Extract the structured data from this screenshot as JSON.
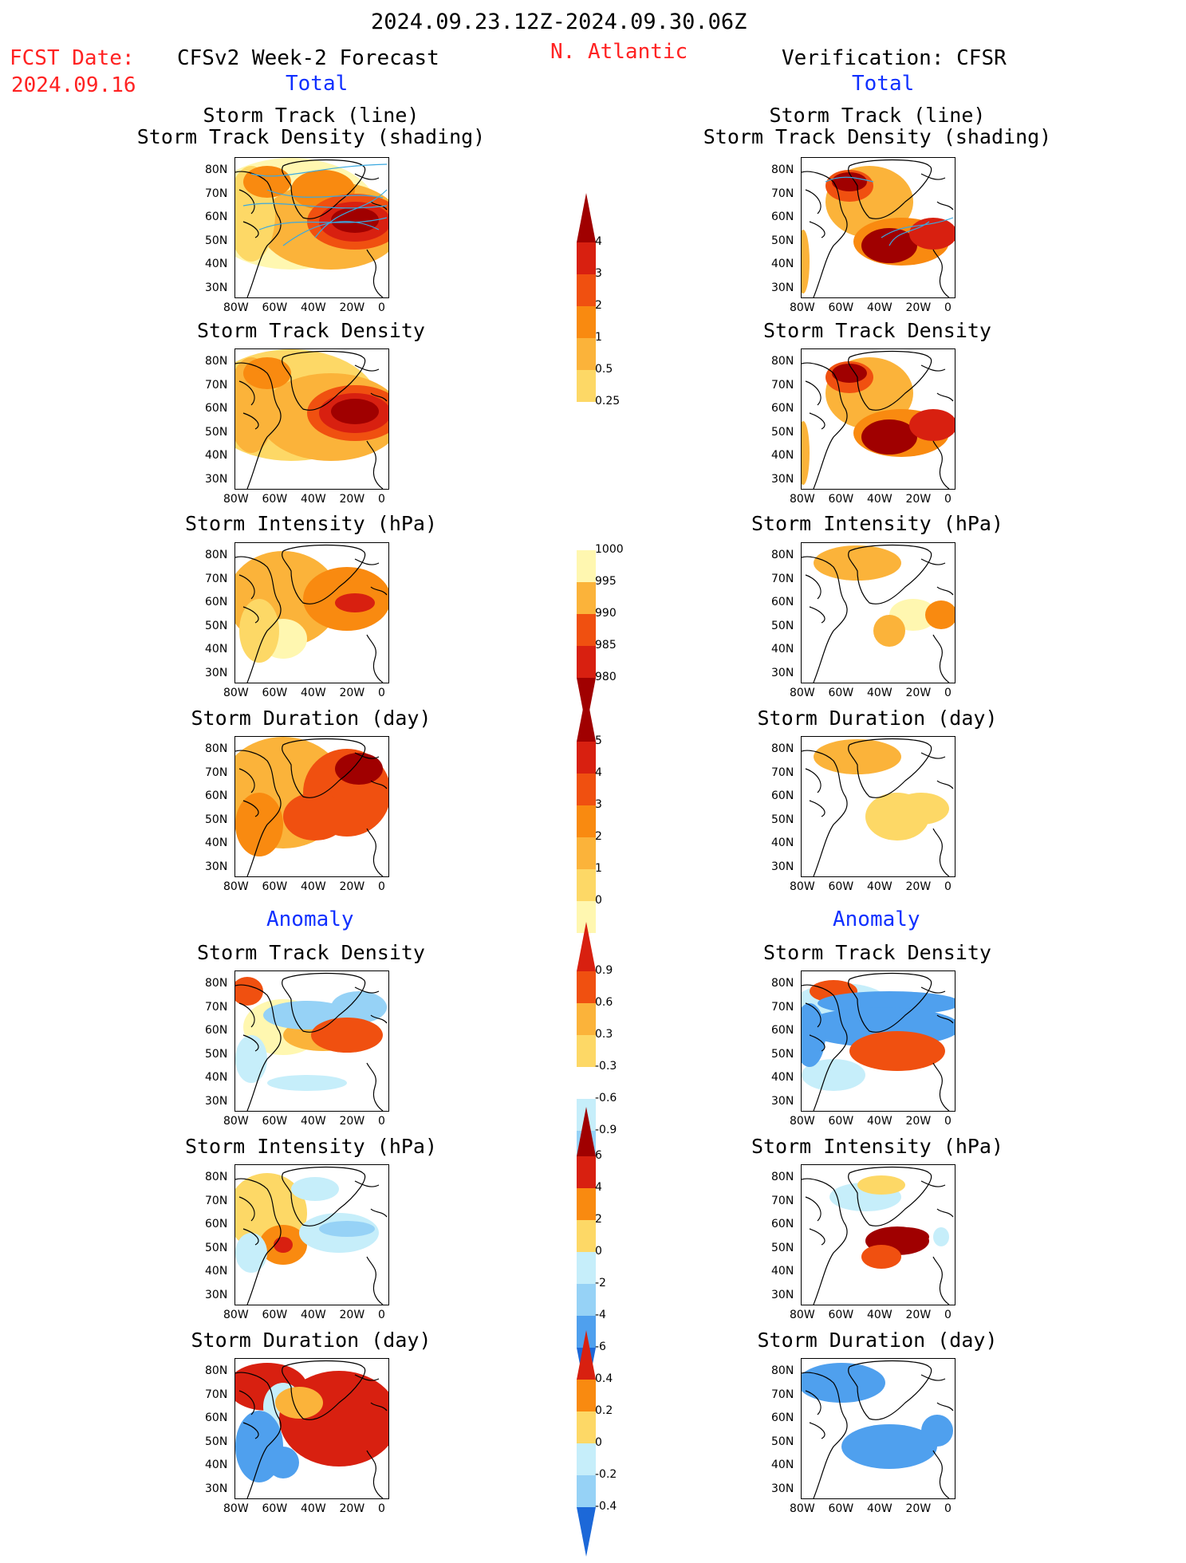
{
  "header": {
    "date_range": "2024.09.23.12Z-2024.09.30.06Z",
    "fcst_label": "FCST Date:",
    "fcst_date": "2024.09.16",
    "model": "CFSv2 Week-2 Forecast",
    "region": "N. Atlantic",
    "verification": "Verification: CFSR"
  },
  "sections": {
    "total": "Total",
    "anomaly": "Anomaly"
  },
  "panel_titles": {
    "track_line": "Storm Track (line)",
    "track_shading": "Storm Track Density (shading)",
    "density": "Storm Track Density",
    "intensity": "Storm Intensity (hPa)",
    "duration": "Storm Duration (day)"
  },
  "axes": {
    "lat_labels": [
      "80N",
      "70N",
      "60N",
      "50N",
      "40N",
      "30N"
    ],
    "lon_labels": [
      "80W",
      "60W",
      "40W",
      "20W",
      "0"
    ]
  },
  "colorbars": {
    "track_density": [
      "4",
      "3",
      "2",
      "1",
      "0.5",
      "0.25"
    ],
    "intensity": [
      "1000",
      "995",
      "990",
      "985",
      "980"
    ],
    "duration": [
      "5",
      "4",
      "3",
      "2",
      "1",
      "0"
    ],
    "anom_density": [
      "0.9",
      "0.6",
      "0.3",
      "-0.3",
      "-0.6",
      "-0.9"
    ],
    "anom_intensity": [
      "6",
      "4",
      "2",
      "0",
      "-2",
      "-4",
      "-6"
    ],
    "anom_duration": [
      "0.4",
      "0.2",
      "0",
      "-0.2",
      "-0.4"
    ]
  },
  "colors": {
    "warm": [
      "#fff7b0",
      "#fdd866",
      "#fbb33a",
      "#f98a10",
      "#f05010",
      "#d82010",
      "#a00000"
    ],
    "cool": [
      "#c6eefa",
      "#96d2f6",
      "#4fa0ee",
      "#1c68d8"
    ],
    "track_line": "#3aa8e0"
  }
}
